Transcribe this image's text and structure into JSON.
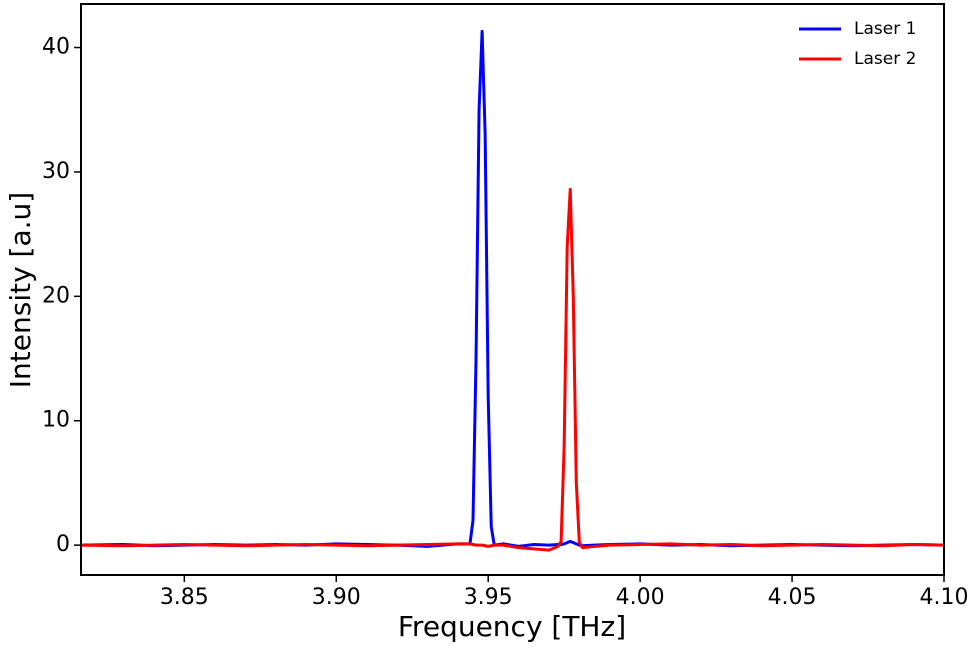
{
  "chart_data": {
    "type": "line",
    "x_label": "Frequency [THz]",
    "y_label": "Intensity [a.u]",
    "x": [
      3.816,
      3.83,
      3.84,
      3.85,
      3.86,
      3.87,
      3.88,
      3.89,
      3.9,
      3.91,
      3.92,
      3.93,
      3.94,
      3.944,
      3.945,
      3.946,
      3.947,
      3.948,
      3.949,
      3.95,
      3.951,
      3.952,
      3.955,
      3.96,
      3.965,
      3.97,
      3.973,
      3.974,
      3.975,
      3.976,
      3.977,
      3.978,
      3.979,
      3.98,
      3.981,
      3.985,
      3.99,
      4.0,
      4.01,
      4.02,
      4.03,
      4.04,
      4.05,
      4.06,
      4.07,
      4.08,
      4.09,
      4.1
    ],
    "series": [
      {
        "name": "Laser 1",
        "color": "#0000ff",
        "values": [
          0,
          0.05,
          -0.05,
          0,
          0.05,
          0,
          0.05,
          0,
          0.1,
          0.05,
          0,
          -0.1,
          0.1,
          0.1,
          2,
          15,
          35,
          41.3,
          33,
          12,
          1.5,
          0,
          0.1,
          -0.1,
          0.05,
          0,
          0.05,
          0.05,
          0.1,
          0.2,
          0.3,
          0.2,
          0.1,
          0,
          -0.05,
          0,
          0.05,
          0.1,
          0,
          0.05,
          -0.05,
          0,
          0.05,
          0,
          -0.05,
          0,
          0.05,
          0
        ]
      },
      {
        "name": "Laser 2",
        "color": "#ff0000",
        "values": [
          0,
          -0.05,
          0,
          0.05,
          0,
          -0.05,
          0,
          0.05,
          0,
          -0.05,
          0,
          0.05,
          0.1,
          0.1,
          0.05,
          0,
          0,
          0,
          -0.05,
          -0.1,
          -0.05,
          0,
          0,
          -0.2,
          -0.3,
          -0.4,
          -0.1,
          0.3,
          8,
          24,
          28.6,
          20,
          5,
          0.2,
          -0.2,
          -0.1,
          0,
          0.05,
          0.1,
          0,
          0.05,
          -0.05,
          0,
          0.05,
          0,
          -0.05,
          0.05,
          0
        ]
      }
    ],
    "xlim": [
      3.816,
      4.1
    ],
    "xticks": [
      3.85,
      {
        "value": 3.9,
        "label": "3.90"
      },
      3.95,
      {
        "value": 4.0,
        "label": "4.00"
      },
      4.05,
      {
        "value": 4.1,
        "label": "4.10"
      }
    ],
    "ylim": [
      -2.4,
      43.5
    ],
    "yticks": [
      0,
      10,
      20,
      30,
      40
    ],
    "legend": "upper right",
    "grid": false
  }
}
